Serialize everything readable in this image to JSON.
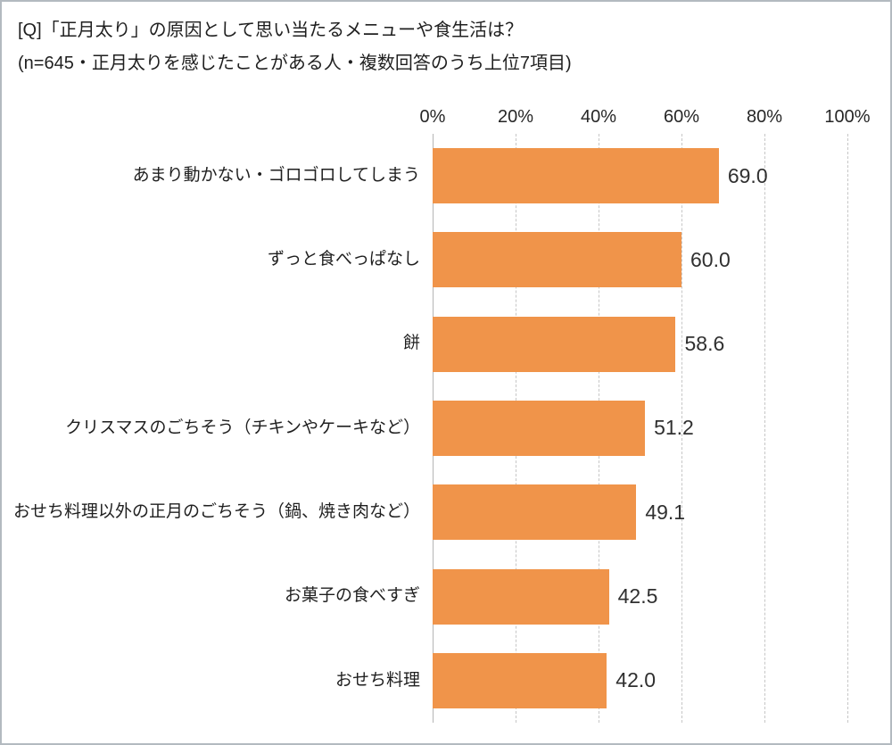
{
  "title": {
    "line1": "[Q]「正月太り」の原因として思い当たるメニューや食生活は？",
    "line2": "(n=645・正月太りを感じたことがある人・複数回答のうち上位7項目)"
  },
  "chart_data": {
    "type": "bar",
    "orientation": "horizontal",
    "categories": [
      "あまり動かない・ゴロゴロしてしまう",
      "ずっと食べっぱなし",
      "餅",
      "クリスマスのごちそう（チキンやケーキなど）",
      "おせち料理以外の正月のごちそう（鍋、焼き肉など）",
      "お菓子の食べすぎ",
      "おせち料理"
    ],
    "values": [
      69.0,
      60.0,
      58.6,
      51.2,
      49.1,
      42.5,
      42.0
    ],
    "value_labels": [
      "69.0",
      "60.0",
      "58.6",
      "51.2",
      "49.1",
      "42.5",
      "42.0"
    ],
    "x_ticks": [
      "0%",
      "20%",
      "40%",
      "60%",
      "80%",
      "100%"
    ],
    "xlim": [
      0,
      100
    ],
    "bar_color": "#f0944a",
    "grid": "dashed-vertical",
    "legend": "none"
  }
}
